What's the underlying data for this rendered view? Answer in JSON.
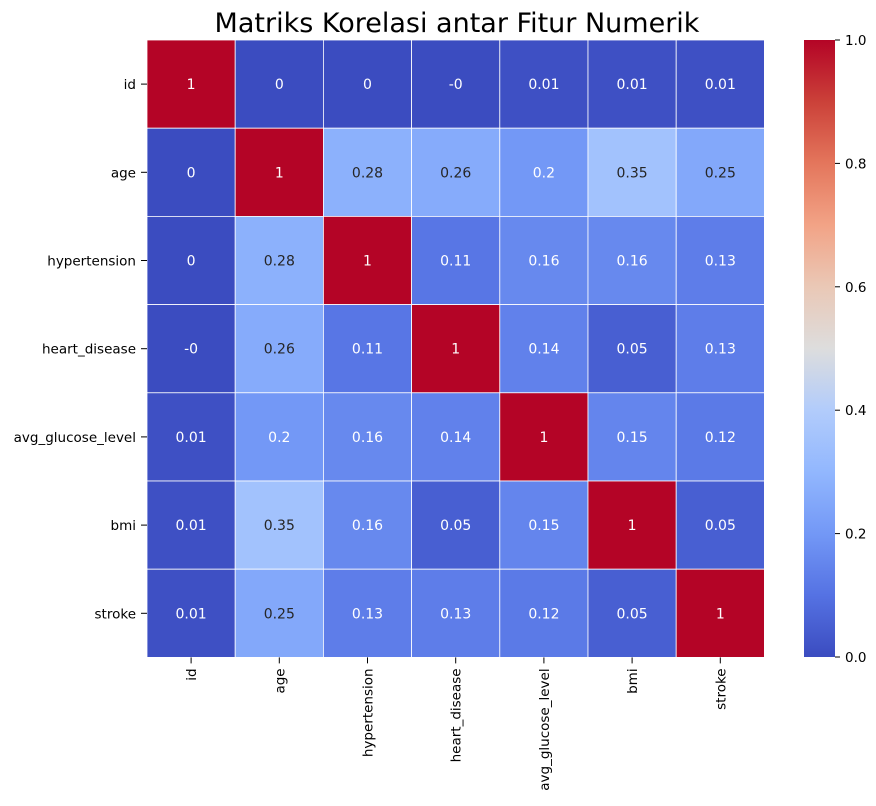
{
  "chart_data": {
    "type": "heatmap",
    "title": "Matriks Korelasi antar Fitur Numerik",
    "rows": [
      "id",
      "age",
      "hypertension",
      "heart_disease",
      "avg_glucose_level",
      "bmi",
      "stroke"
    ],
    "columns": [
      "id",
      "age",
      "hypertension",
      "heart_disease",
      "avg_glucose_level",
      "bmi",
      "stroke"
    ],
    "values": [
      [
        1,
        0,
        0,
        0,
        0.01,
        0.01,
        0.01
      ],
      [
        0,
        1,
        0.28,
        0.26,
        0.2,
        0.35,
        0.25
      ],
      [
        0,
        0.28,
        1,
        0.11,
        0.16,
        0.16,
        0.13
      ],
      [
        0,
        0.26,
        0.11,
        1,
        0.14,
        0.05,
        0.13
      ],
      [
        0.01,
        0.2,
        0.16,
        0.14,
        1,
        0.15,
        0.12
      ],
      [
        0.01,
        0.35,
        0.16,
        0.05,
        0.15,
        1,
        0.05
      ],
      [
        0.01,
        0.25,
        0.13,
        0.13,
        0.12,
        0.05,
        1
      ]
    ],
    "cell_labels": [
      [
        "1",
        "0",
        "0",
        "-0",
        "0.01",
        "0.01",
        "0.01"
      ],
      [
        "0",
        "1",
        "0.28",
        "0.26",
        "0.2",
        "0.35",
        "0.25"
      ],
      [
        "0",
        "0.28",
        "1",
        "0.11",
        "0.16",
        "0.16",
        "0.13"
      ],
      [
        "-0",
        "0.26",
        "0.11",
        "1",
        "0.14",
        "0.05",
        "0.13"
      ],
      [
        "0.01",
        "0.2",
        "0.16",
        "0.14",
        "1",
        "0.15",
        "0.12"
      ],
      [
        "0.01",
        "0.35",
        "0.16",
        "0.05",
        "0.15",
        "1",
        "0.05"
      ],
      [
        "0.01",
        "0.25",
        "0.13",
        "0.13",
        "0.12",
        "0.05",
        "1"
      ]
    ],
    "colormap": "coolwarm",
    "vmin": 0,
    "vmax": 1,
    "colorbar_ticks": [
      "0.0",
      "0.2",
      "0.4",
      "0.6",
      "0.8",
      "1.0"
    ],
    "colors": {
      "low": "#3b4cc0",
      "mid": "#dddddd",
      "high": "#b40426",
      "grid_line": "#ffffff"
    }
  }
}
